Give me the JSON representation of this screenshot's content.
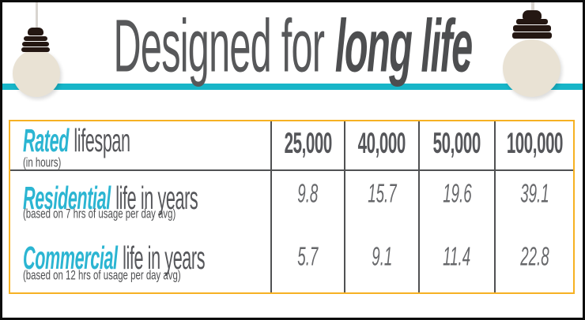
{
  "title": {
    "regular": "Designed for",
    "emphasis": "long life"
  },
  "table": {
    "header": {
      "em": "Rated",
      "rest": "lifespan",
      "sub": "(in hours)",
      "columns": [
        "25,000",
        "40,000",
        "50,000",
        "100,000"
      ]
    },
    "rows": [
      {
        "em": "Residential",
        "rest": "life in years",
        "sub": "(based on 7 hrs of usage per day avg)",
        "values": [
          "9.8",
          "15.7",
          "19.6",
          "39.1"
        ]
      },
      {
        "em": "Commercial",
        "rest": "life in years",
        "sub": "(based on 12 hrs of usage per day avg)",
        "values": [
          "5.7",
          "9.1",
          "11.4",
          "22.8"
        ]
      }
    ]
  },
  "colors": {
    "accent_cyan": "#2bb5d2",
    "stripe_teal": "#17b5c8",
    "table_border_gold": "#f6b123",
    "text_gray": "#55565a",
    "grid_line_gray": "#505153",
    "bulb_cream": "#e9e2d4",
    "bulb_base_dark": "#241712",
    "frame_border": "#0c0c0c"
  },
  "chart_data": {
    "type": "table",
    "title": "Designed for long life",
    "columns": [
      "25,000",
      "40,000",
      "50,000",
      "100,000"
    ],
    "rows": [
      {
        "label": "Rated lifespan (in hours)",
        "values": [
          25000,
          40000,
          50000,
          100000
        ]
      },
      {
        "label": "Residential life in years (based on 7 hrs of usage per day avg)",
        "values": [
          9.8,
          15.7,
          19.6,
          39.1
        ]
      },
      {
        "label": "Commercial life in years (based on 12 hrs of usage per day avg)",
        "values": [
          5.7,
          9.1,
          11.4,
          22.8
        ]
      }
    ]
  }
}
